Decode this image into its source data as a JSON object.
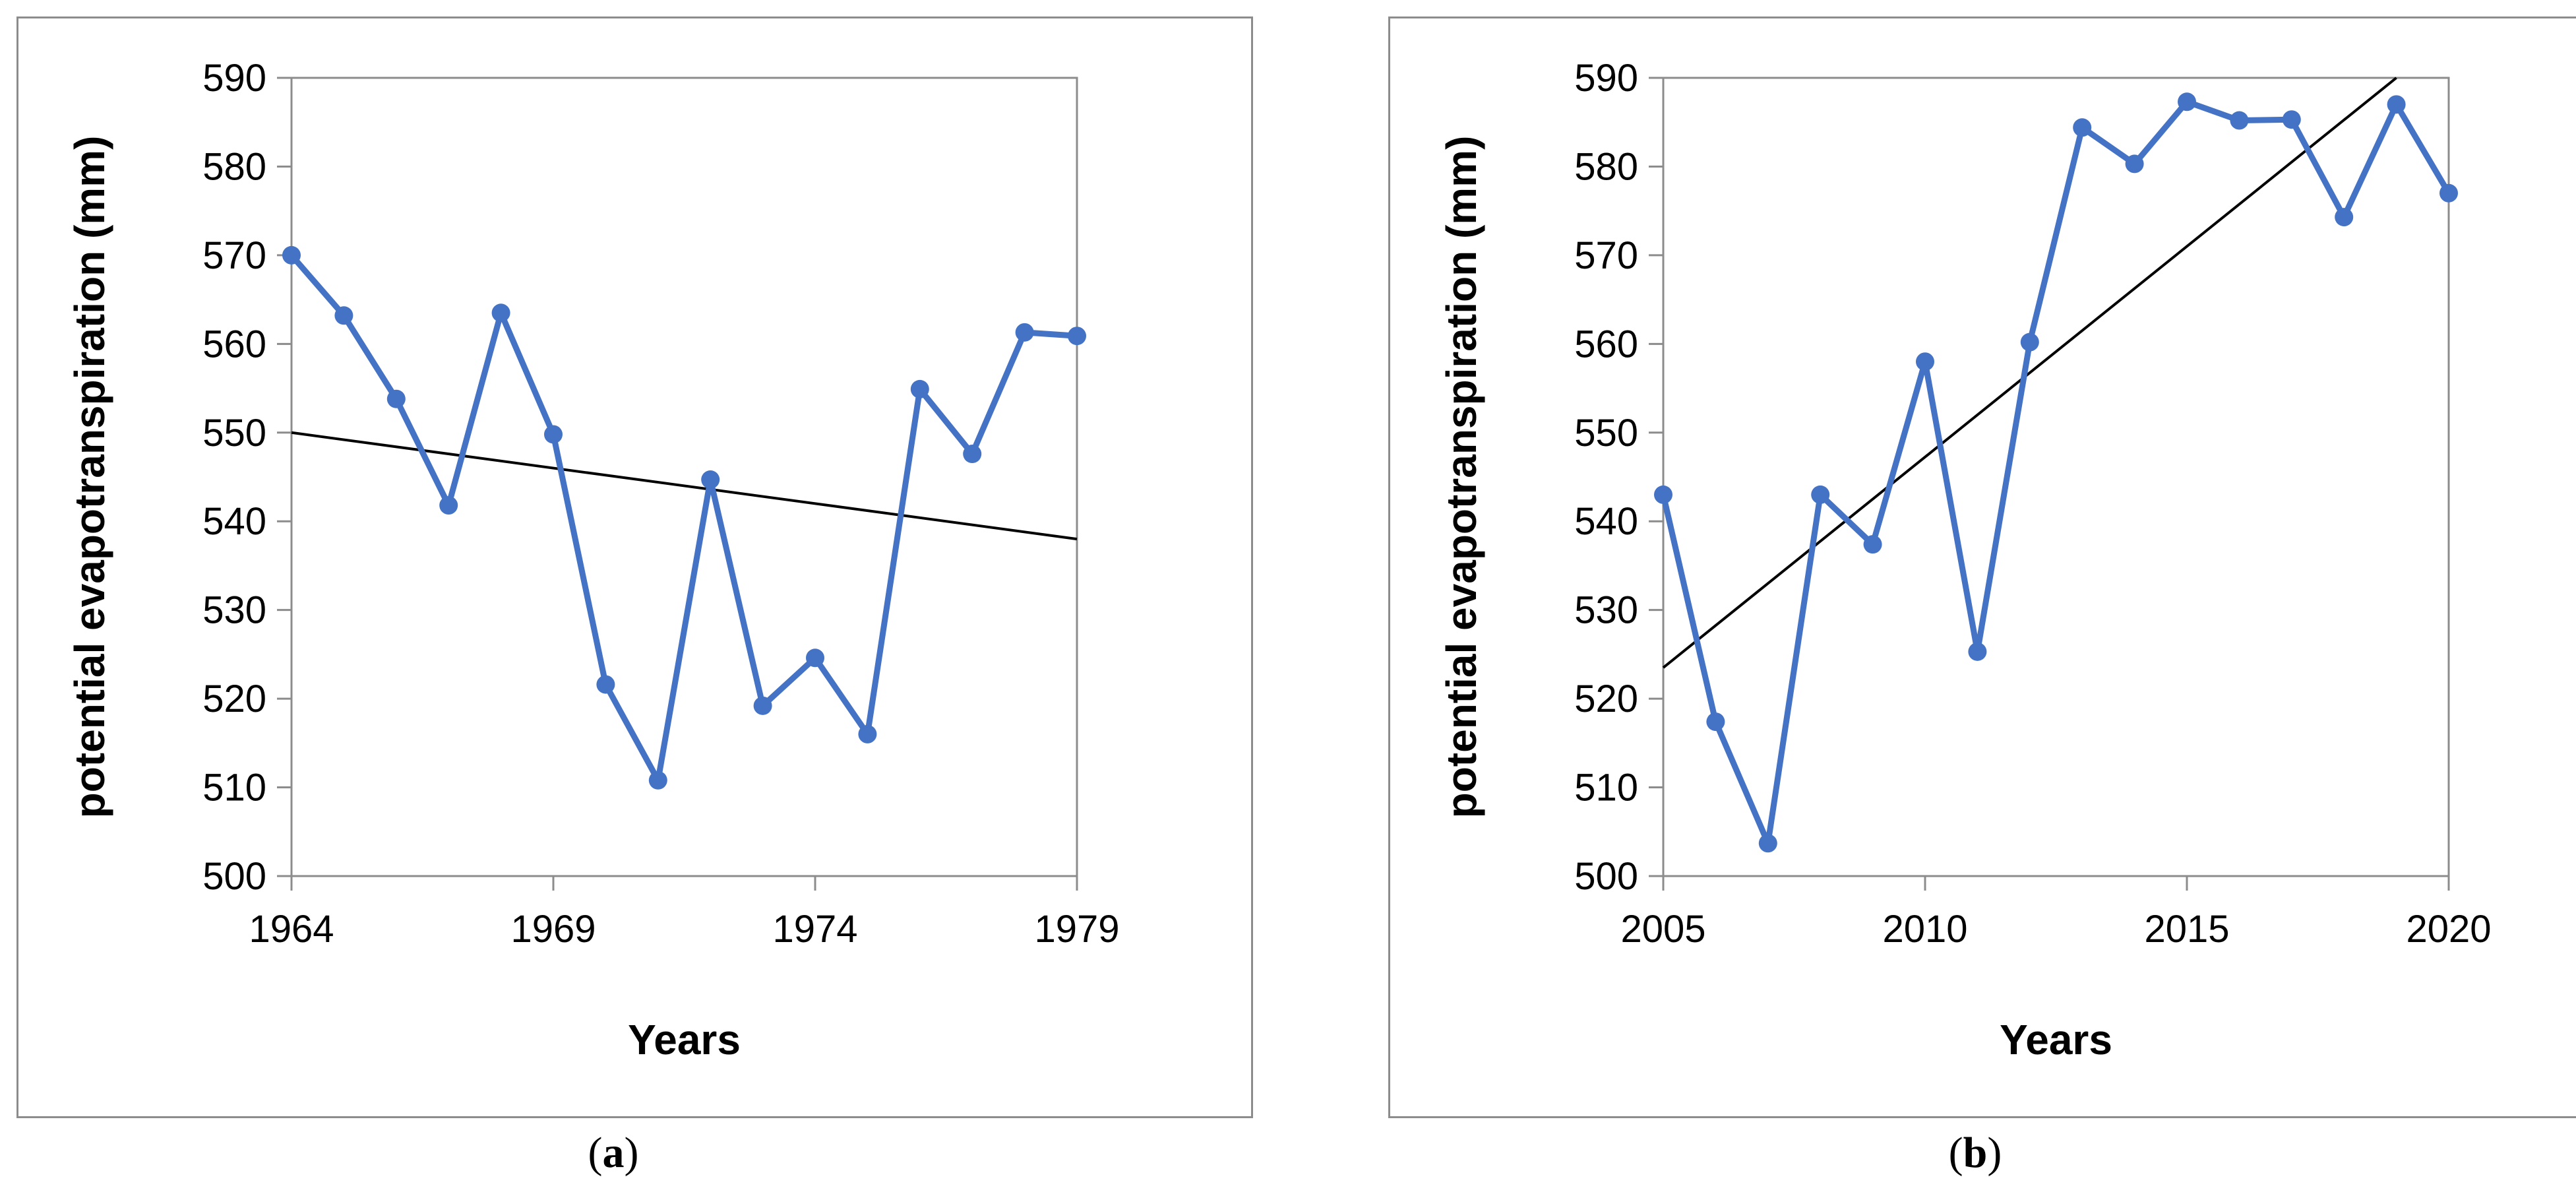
{
  "chart_data": [
    {
      "type": "line",
      "panel": "a",
      "xlabel": "Years",
      "ylabel": "potential evapotranspiration (mm)",
      "xlim": [
        1964,
        1979
      ],
      "ylim": [
        500,
        590
      ],
      "xticks": [
        1964,
        1969,
        1974,
        1979
      ],
      "yticks": [
        500,
        510,
        520,
        530,
        540,
        550,
        560,
        570,
        580,
        590
      ],
      "grid": false,
      "legend": "none",
      "series": [
        {
          "x": [
            1964,
            1965,
            1966,
            1967,
            1968,
            1969,
            1970,
            1971,
            1972,
            1973,
            1974,
            1975,
            1976,
            1977,
            1978,
            1979
          ],
          "y": [
            570,
            563.2,
            553.8,
            541.8,
            563.5,
            549.8,
            521.6,
            510.8,
            544.7,
            519.2,
            524.6,
            516,
            554.9,
            547.6,
            561.3,
            560.9
          ],
          "color": "#4472C4"
        }
      ],
      "trendline": {
        "x": [
          1964,
          1979
        ],
        "y": [
          550,
          538
        ],
        "color": "#000000"
      }
    },
    {
      "type": "line",
      "panel": "b",
      "xlabel": "Years",
      "ylabel": "potential evapotranspiration (mm)",
      "xlim": [
        2005,
        2020
      ],
      "ylim": [
        500,
        590
      ],
      "xticks": [
        2005,
        2010,
        2015,
        2020
      ],
      "yticks": [
        500,
        510,
        520,
        530,
        540,
        550,
        560,
        570,
        580,
        590
      ],
      "grid": false,
      "legend": "none",
      "series": [
        {
          "x": [
            2005,
            2006,
            2007,
            2008,
            2009,
            2010,
            2011,
            2012,
            2013,
            2014,
            2015,
            2016,
            2017,
            2018,
            2019,
            2020
          ],
          "y": [
            543,
            517.4,
            503.7,
            543,
            537.4,
            558,
            525.3,
            560.2,
            584.4,
            580.3,
            587.3,
            585.2,
            585.3,
            574.3,
            587,
            577
          ],
          "color": "#4472C4"
        }
      ],
      "trendline": {
        "x": [
          2005,
          2019
        ],
        "y": [
          523.5,
          590
        ],
        "color": "#000000"
      }
    }
  ],
  "captions": [
    "a",
    "b"
  ]
}
